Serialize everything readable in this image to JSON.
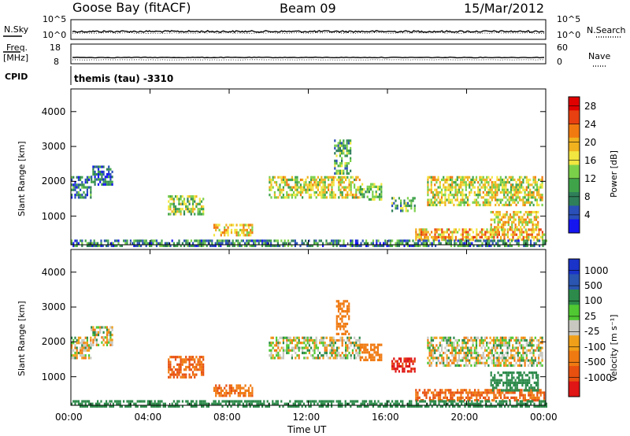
{
  "header": {
    "station": "Goose Bay (fitACF)",
    "beam": "Beam 09",
    "date": "15/Mar/2012"
  },
  "summary_panels": {
    "nsky_label": "N.Sky",
    "nsearch_label": "N.Search",
    "freq_label": "Freq.",
    "freq_unit": "[MHz]",
    "nave_label": "Nave",
    "cpid_label": "CPID",
    "cpid_value": "themis (tau) -3310",
    "noise_ticks_left": [
      "10^5",
      "10^0"
    ],
    "noise_ticks_right": [
      "10^5",
      "10^0"
    ],
    "freq_ticks_left": [
      "18",
      "8"
    ],
    "nave_ticks_right": [
      "60",
      "0"
    ]
  },
  "colors": {
    "power_scale": [
      "#1515f0",
      "#2a4fb8",
      "#2f7f5a",
      "#3fa34a",
      "#7bd04a",
      "#f2e640",
      "#f0b21e",
      "#f07a10",
      "#e84010",
      "#e00000"
    ],
    "velocity_scale": [
      "#1a33c8",
      "#2a55b0",
      "#2c8a4a",
      "#4fc832",
      "#c8c8c0",
      "#f0a018",
      "#f07a12",
      "#e85010",
      "#e01515"
    ],
    "axis": "#000000"
  },
  "chart_data": [
    {
      "type": "heatmap",
      "panel": "power",
      "ylabel": "Slant Range [km]",
      "xlabel": "",
      "x_ticks": [
        "00:00",
        "04:00",
        "08:00",
        "12:00",
        "16:00",
        "20:00",
        "00:00"
      ],
      "y_ticks": [
        "1000",
        "2000",
        "3000",
        "4000"
      ],
      "xlim_hours": [
        0,
        24
      ],
      "ylim_km": [
        180,
        4650
      ],
      "colorbar": {
        "label": "Power [dB]",
        "ticks": [
          "4",
          "8",
          "12",
          "16",
          "20",
          "24",
          "28"
        ],
        "range": [
          0,
          30
        ]
      },
      "regions": [
        {
          "t0": 0.0,
          "t1": 1.0,
          "r0": 1500,
          "r1": 2150,
          "v": 8
        },
        {
          "t0": 1.0,
          "t1": 2.1,
          "r0": 1900,
          "r1": 2450,
          "v": 6
        },
        {
          "t0": 4.9,
          "t1": 6.7,
          "r0": 1050,
          "r1": 1600,
          "v": 14
        },
        {
          "t0": 7.2,
          "t1": 9.2,
          "r0": 480,
          "r1": 780,
          "v": 18
        },
        {
          "t0": 10.0,
          "t1": 14.6,
          "r0": 1550,
          "r1": 2150,
          "v": 16
        },
        {
          "t0": 13.3,
          "t1": 14.1,
          "r0": 2200,
          "r1": 3200,
          "v": 10
        },
        {
          "t0": 14.6,
          "t1": 15.7,
          "r0": 1450,
          "r1": 1950,
          "v": 12
        },
        {
          "t0": 16.2,
          "t1": 17.4,
          "r0": 1150,
          "r1": 1550,
          "v": 10
        },
        {
          "t0": 17.4,
          "t1": 23.9,
          "r0": 350,
          "r1": 650,
          "v": 20
        },
        {
          "t0": 18.0,
          "t1": 23.8,
          "r0": 1300,
          "r1": 2150,
          "v": 16
        },
        {
          "t0": 21.2,
          "t1": 23.6,
          "r0": 600,
          "r1": 1150,
          "v": 18
        },
        {
          "t0": 0.0,
          "t1": 24.0,
          "r0": 180,
          "r1": 330,
          "v": 8
        }
      ]
    },
    {
      "type": "heatmap",
      "panel": "velocity",
      "ylabel": "Slant Range [km]",
      "xlabel": "Time UT",
      "x_ticks": [
        "00:00",
        "04:00",
        "08:00",
        "12:00",
        "16:00",
        "20:00",
        "00:00"
      ],
      "y_ticks": [
        "1000",
        "2000",
        "3000",
        "4000"
      ],
      "xlim_hours": [
        0,
        24
      ],
      "ylim_km": [
        180,
        4650
      ],
      "colorbar": {
        "label": "Velocity [m s⁻¹]",
        "ticks": [
          "1000",
          "500",
          "100",
          "25",
          "-25",
          "-100",
          "-500",
          "-1000"
        ]
      },
      "regions": [
        {
          "t0": 0.0,
          "t1": 1.0,
          "r0": 1550,
          "r1": 2150,
          "v": 0
        },
        {
          "t0": 1.0,
          "t1": 2.1,
          "r0": 1900,
          "r1": 2450,
          "v": 0
        },
        {
          "t0": 4.9,
          "t1": 6.7,
          "r0": 1000,
          "r1": 1600,
          "v": -300
        },
        {
          "t0": 7.2,
          "t1": 9.2,
          "r0": 480,
          "r1": 780,
          "v": -250
        },
        {
          "t0": 10.0,
          "t1": 14.6,
          "r0": 1550,
          "r1": 2150,
          "v": 0
        },
        {
          "t0": 13.4,
          "t1": 14.1,
          "r0": 2200,
          "r1": 3200,
          "v": -200
        },
        {
          "t0": 14.6,
          "t1": 15.7,
          "r0": 1450,
          "r1": 1950,
          "v": -150
        },
        {
          "t0": 16.2,
          "t1": 17.4,
          "r0": 1150,
          "r1": 1550,
          "v": -800
        },
        {
          "t0": 17.4,
          "t1": 23.9,
          "r0": 350,
          "r1": 650,
          "v": -300
        },
        {
          "t0": 18.0,
          "t1": 23.8,
          "r0": 1300,
          "r1": 2150,
          "v": 0
        },
        {
          "t0": 21.2,
          "t1": 23.6,
          "r0": 600,
          "r1": 1150,
          "v": 200
        },
        {
          "t0": 0.0,
          "t1": 24.0,
          "r0": 180,
          "r1": 330,
          "v": 150
        }
      ]
    }
  ]
}
